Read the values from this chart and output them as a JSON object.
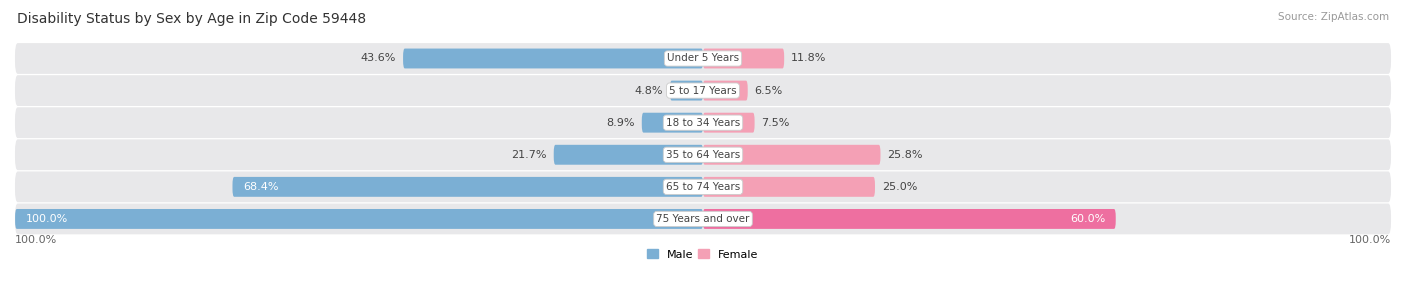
{
  "title": "Disability Status by Sex by Age in Zip Code 59448",
  "source": "Source: ZipAtlas.com",
  "categories": [
    "Under 5 Years",
    "5 to 17 Years",
    "18 to 34 Years",
    "35 to 64 Years",
    "65 to 74 Years",
    "75 Years and over"
  ],
  "male_values": [
    43.6,
    4.8,
    8.9,
    21.7,
    68.4,
    100.0
  ],
  "female_values": [
    11.8,
    6.5,
    7.5,
    25.8,
    25.0,
    60.0
  ],
  "male_color": "#7bafd4",
  "female_color": "#f4a0b5",
  "female_color_large": "#ee6fa0",
  "male_label": "Male",
  "female_label": "Female",
  "row_bg_color": "#e8e8ea",
  "axis_label_left": "100.0%",
  "axis_label_right": "100.0%",
  "title_fontsize": 10,
  "label_fontsize": 8,
  "bar_height": 0.62,
  "xlim": 100
}
